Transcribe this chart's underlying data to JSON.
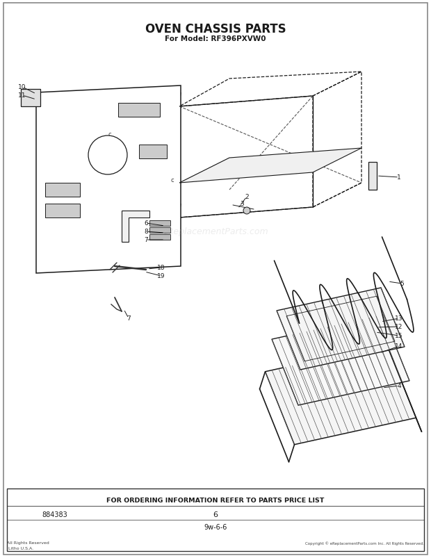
{
  "title": "OVEN CHASSIS PARTS",
  "subtitle": "For Model: RF396PXVW0",
  "footer_text": "FOR ORDERING INFORMATION REFER TO PARTS PRICE LIST",
  "part_number": "884383",
  "page_number": "6",
  "page_code": "9w-6-6",
  "bg_color": "#ffffff",
  "title_fontsize": 12,
  "subtitle_fontsize": 7.5,
  "watermark_text": "eReplacementParts.com",
  "watermark_alpha": 0.22
}
